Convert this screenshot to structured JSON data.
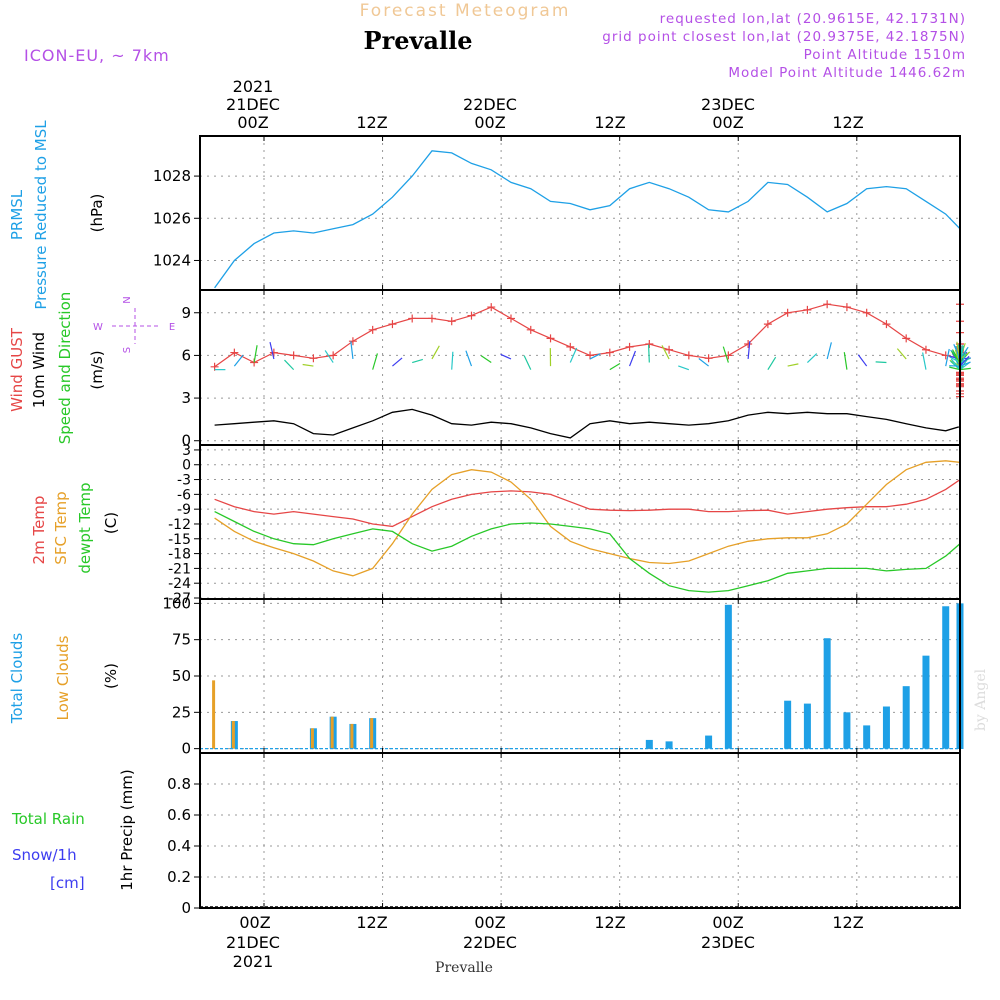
{
  "header": {
    "subtitle": "Forecast Meteogram",
    "title": "Prevalle",
    "model": "ICON-EU, ~ 7km",
    "requested": "requested lon,lat (20.9615E, 42.1731N)",
    "grid_point": "grid point closest lon,lat (20.9375E, 42.1875N)",
    "point_alt": "Point Altitude 1510m",
    "model_alt": "Model Point Altitude 1446.62m"
  },
  "top_axis": {
    "year": "2021",
    "days": [
      "21DEC",
      "22DEC",
      "23DEC"
    ],
    "ticks": [
      "00Z",
      "12Z",
      "00Z",
      "12Z",
      "00Z",
      "12Z"
    ]
  },
  "bottom_axis": {
    "ticks": [
      "00Z",
      "12Z",
      "00Z",
      "12Z",
      "00Z",
      "12Z"
    ],
    "days": [
      "21DEC",
      "22DEC",
      "23DEC"
    ],
    "year": "2021",
    "place": "Prevalle"
  },
  "watermark": "by Angel",
  "colors": {
    "pressure": "#1ea0e6",
    "gust": "#e64646",
    "wind10m": "#000000",
    "temp2m": "#e64646",
    "sfc_temp": "#e6a028",
    "dewpt": "#28c828",
    "total_clouds": "#1ea0e6",
    "low_clouds": "#e6a028",
    "rain": "#28c828",
    "snow": "#3c3cf0",
    "purple": "#b450e6"
  },
  "panels": {
    "pressure": {
      "label1": "PRMSL",
      "label2": "Pressure Reduced to MSL",
      "unit": "(hPa)"
    },
    "wind": {
      "label_gust": "Wind GUST",
      "label_10m": "10m Wind",
      "label_dir": "Speed and Direction",
      "unit": "(m/s)",
      "compass": {
        "n": "N",
        "s": "S",
        "w": "W",
        "e": "E"
      }
    },
    "temp": {
      "label_2m": "2m Temp",
      "label_sfc": "SFC Temp",
      "label_dew": "dewpt Temp",
      "unit": "(C)"
    },
    "clouds": {
      "label_total": "Total Clouds",
      "label_low": "Low Clouds",
      "unit": "(%)"
    },
    "precip": {
      "label_rain": "Total  Rain",
      "label_snow": "Snow/1h",
      "label_cm": "[cm]",
      "axis": "1hr Precip (mm)"
    }
  },
  "chart_data": [
    {
      "type": "line",
      "title": "PRMSL Pressure Reduced to MSL",
      "ylabel": "(hPa)",
      "ylim": [
        1022.6,
        1029.9
      ],
      "yticks": [
        1024,
        1026,
        1028
      ],
      "x_hours": [
        -5,
        -3,
        -1,
        1,
        3,
        5,
        7,
        9,
        11,
        13,
        15,
        17,
        19,
        21,
        23,
        25,
        27,
        29,
        31,
        33,
        35,
        37,
        39,
        41,
        43,
        45,
        47,
        49,
        51,
        53,
        55,
        57,
        59,
        61,
        63,
        65,
        67,
        69,
        71,
        73,
        75,
        77,
        79,
        81,
        83,
        85,
        87,
        89,
        91,
        93,
        95,
        97,
        99,
        101,
        103,
        105,
        107,
        109,
        111,
        113,
        115,
        117,
        119,
        121,
        123,
        125,
        127,
        129,
        131,
        133,
        135,
        137,
        139,
        141,
        143
      ],
      "values": [
        1022.7,
        1024.0,
        1024.8,
        1025.3,
        1025.4,
        1025.3,
        1025.5,
        1025.7,
        1026.2,
        1027.0,
        1028.0,
        1029.2,
        1029.1,
        1028.6,
        1028.3,
        1027.7,
        1027.4,
        1026.8,
        1026.7,
        1026.4,
        1026.6,
        1027.4,
        1027.7,
        1027.4,
        1027.0,
        1026.4,
        1026.3,
        1026.8,
        1027.7,
        1027.6,
        1027.0,
        1026.3,
        1026.7,
        1027.4,
        1027.5,
        1027.4,
        1026.8,
        1026.2,
        1025.5,
        1025.1,
        1024.8,
        1024.9,
        1025.2,
        1025.8,
        1026.2,
        1027.1,
        1027.4,
        1027.2,
        1027.4,
        1027.5,
        1027.9,
        1028.1,
        1028.1,
        1028.2,
        1027.8,
        1027.3,
        1027.1,
        1027.2,
        1027.4,
        1027.3,
        1027.0,
        1026.3,
        1025.2,
        1024.5,
        1023.9,
        1023.8,
        1023.7,
        1023.8,
        1024.3,
        1024.4,
        1024.7,
        1024.6,
        1024.2,
        1023.6,
        1023.2
      ]
    },
    {
      "type": "line",
      "title": "Wind GUST / 10m Wind Speed and Direction",
      "ylabel": "(m/s)",
      "ylim": [
        -0.3,
        10.6
      ],
      "yticks": [
        0,
        3,
        6,
        9
      ],
      "x_hours": [
        -5,
        -3,
        -1,
        1,
        3,
        5,
        7,
        9,
        11,
        13,
        15,
        17,
        19,
        21,
        23,
        25,
        27,
        29,
        31,
        33,
        35,
        37,
        39,
        41,
        43,
        45,
        47,
        49,
        51,
        53,
        55,
        57,
        59,
        61,
        63,
        65,
        67,
        69,
        71,
        73,
        75,
        77,
        79,
        81,
        83,
        85,
        87,
        89,
        91,
        93,
        95,
        97,
        99,
        101,
        103,
        105,
        107,
        109,
        111,
        113,
        115,
        117,
        119,
        121,
        123,
        125,
        127,
        129,
        131,
        133,
        135,
        137,
        139,
        141,
        143
      ],
      "series": [
        {
          "name": "Wind GUST",
          "values": [
            5.2,
            6.2,
            5.5,
            6.2,
            6.0,
            5.8,
            6.0,
            7.0,
            7.8,
            8.2,
            8.6,
            8.6,
            8.4,
            8.8,
            9.4,
            8.6,
            7.8,
            7.2,
            6.6,
            6.0,
            6.2,
            6.6,
            6.8,
            6.4,
            6.0,
            5.8,
            6.0,
            6.8,
            8.2,
            9.0,
            9.2,
            9.6,
            9.4,
            9.0,
            8.2,
            7.2,
            6.4,
            6.0,
            5.8,
            6.0,
            6.2,
            6.3,
            6.2,
            5.6,
            4.8,
            4.0,
            3.5,
            3.1,
            3.3,
            3.8,
            4.2,
            4.3,
            4.4,
            4.6,
            4.7,
            4.8,
            4.8,
            4.6,
            4.2,
            4.0,
            3.9,
            4.4,
            5.2,
            6.5,
            6.8,
            6.5,
            6.2,
            6.2,
            6.6,
            6.4,
            6.0,
            6.8,
            7.6,
            8.4,
            9.6
          ]
        },
        {
          "name": "10m Wind",
          "values": [
            1.1,
            1.2,
            1.3,
            1.4,
            1.2,
            0.5,
            0.4,
            0.9,
            1.4,
            2.0,
            2.2,
            1.8,
            1.2,
            1.1,
            1.3,
            1.2,
            0.9,
            0.5,
            0.2,
            1.2,
            1.4,
            1.2,
            1.3,
            1.2,
            1.1,
            1.2,
            1.4,
            1.8,
            2.0,
            1.9,
            2.0,
            1.9,
            1.9,
            1.7,
            1.5,
            1.2,
            0.9,
            0.7,
            1.0,
            1.1,
            1.0,
            0.7,
            0.3,
            0.8,
            1.0,
            0.9,
            1.0,
            1.1,
            1.1,
            1.2,
            1.3,
            1.5,
            1.5,
            1.4,
            1.5,
            1.4,
            1.6,
            1.5,
            1.3,
            1.0,
            0.7,
            0.5,
            0.7,
            0.8,
            1.2,
            0.9,
            0.8,
            1.9,
            1.8,
            1.7,
            1.9,
            2.1,
            2.1,
            2.4,
            2.3
          ]
        }
      ]
    },
    {
      "type": "line",
      "title": "2m Temp / SFC Temp / dewpt Temp",
      "ylabel": "(C)",
      "ylim": [
        -27.2,
        4
      ],
      "yticks": [
        -27,
        -24,
        -21,
        -18,
        -15,
        -12,
        -9,
        -6,
        -3,
        0,
        3
      ],
      "x_hours": [
        -5,
        -3,
        -1,
        1,
        3,
        5,
        7,
        9,
        11,
        13,
        15,
        17,
        19,
        21,
        23,
        25,
        27,
        29,
        31,
        33,
        35,
        37,
        39,
        41,
        43,
        45,
        47,
        49,
        51,
        53,
        55,
        57,
        59,
        61,
        63,
        65,
        67,
        69,
        71,
        73,
        75,
        77,
        79,
        81,
        83,
        85,
        87,
        89,
        91,
        93,
        95,
        97,
        99,
        101,
        103,
        105,
        107,
        109,
        111,
        113,
        115,
        117,
        119,
        121,
        123,
        125,
        127,
        129,
        131,
        133,
        135,
        137,
        139,
        141,
        143
      ],
      "series": [
        {
          "name": "2m Temp",
          "values": [
            -7,
            -8.5,
            -9.5,
            -10.0,
            -9.5,
            -10.0,
            -10.5,
            -11.0,
            -12.0,
            -12.5,
            -10.5,
            -8.5,
            -7.0,
            -6.0,
            -5.5,
            -5.3,
            -5.5,
            -6.0,
            -7.5,
            -9.0,
            -9.2,
            -9.3,
            -9.2,
            -9.0,
            -9.0,
            -9.5,
            -9.5,
            -9.3,
            -9.2,
            -10.0,
            -9.5,
            -9.0,
            -8.7,
            -8.5,
            -8.5,
            -8.0,
            -7.0,
            -5.0,
            -3.0,
            -2.0,
            -1.8,
            -1.9,
            -2.5,
            -4.5,
            -6.5,
            -7.5,
            -8.0,
            -8.2,
            -8.5,
            -8.8,
            -9.0,
            -8.5,
            -8.3,
            -8.3,
            -8.0,
            -7.8,
            -7.5,
            -7.0,
            -7.5,
            -7.0,
            -6.0,
            -3.5,
            -1.5,
            -0.5,
            -0.2,
            -0.5,
            -1.0,
            -2.5,
            -4.0,
            -4.2,
            -4.2,
            -3.8,
            -3.5,
            -2.8,
            -2.8
          ]
        },
        {
          "name": "SFC Temp",
          "values": [
            -10.8,
            -13.5,
            -15.5,
            -16.8,
            -18.0,
            -19.5,
            -21.5,
            -22.5,
            -21.0,
            -16.0,
            -10.0,
            -5.0,
            -2.0,
            -1.0,
            -1.5,
            -3.5,
            -7.0,
            -12.5,
            -15.5,
            -17.0,
            -18.0,
            -19.0,
            -19.8,
            -20.0,
            -19.5,
            -18.0,
            -16.5,
            -15.5,
            -15.0,
            -14.8,
            -14.8,
            -14.0,
            -12.0,
            -8.0,
            -4.0,
            -1.0,
            0.5,
            0.8,
            0.5,
            -1.0,
            -4.0,
            -8.0,
            -12.0,
            -15.0,
            -17.0,
            -17.8,
            -17.5,
            -16.8,
            -16.0,
            -15.5,
            -15.0,
            -14.5,
            -14.2,
            -14.0,
            -13.8,
            -12.0,
            -7.0,
            -1.0,
            2.0,
            2.5,
            2.0,
            0.0,
            -3.0,
            -7.0,
            -9.5,
            -10.5,
            -10.5,
            -10.0,
            -9.5,
            -9.0,
            -8.5,
            -7.5,
            -7.0,
            -7.0,
            -7.0
          ]
        },
        {
          "name": "dewpt Temp",
          "values": [
            -9.5,
            -11.5,
            -13.5,
            -15.0,
            -16.0,
            -16.2,
            -15.0,
            -14.0,
            -13.0,
            -13.5,
            -16.0,
            -17.5,
            -16.5,
            -14.5,
            -13.0,
            -12.0,
            -11.8,
            -12.0,
            -12.5,
            -13.0,
            -14.0,
            -19.0,
            -22.0,
            -24.5,
            -25.5,
            -25.8,
            -25.5,
            -24.5,
            -23.5,
            -22.0,
            -21.5,
            -21.0,
            -21.0,
            -21.0,
            -21.5,
            -21.2,
            -21.0,
            -18.5,
            -16.0,
            -19.0,
            -18.5,
            -17.0,
            -15.0,
            -13.5,
            -12.5,
            -12.8,
            -13.0,
            -13.0,
            -13.0,
            -13.0,
            -12.8,
            -12.5,
            -12.5,
            -12.5,
            -12.5,
            -12.5,
            -12.8,
            -12.8,
            -12.5,
            -12.0,
            -11.5,
            -9.5,
            -10.5,
            -10.5,
            -10.2,
            -9.8,
            -9.5,
            -7.0,
            -10.0,
            -12.0,
            -12.5,
            -12.5,
            -12.8,
            -12.5,
            -10.0
          ]
        }
      ]
    },
    {
      "type": "bar",
      "title": "Total Clouds / Low Clouds",
      "ylabel": "(%)",
      "ylim": [
        -3,
        103
      ],
      "yticks": [
        0,
        25,
        50,
        75,
        100
      ],
      "x_hours": [
        -5,
        -3,
        -1,
        1,
        3,
        5,
        7,
        9,
        11,
        13,
        15,
        17,
        19,
        21,
        23,
        25,
        27,
        29,
        31,
        33,
        35,
        37,
        39,
        41,
        43,
        45,
        47,
        49,
        51,
        53,
        55,
        57,
        59,
        61,
        63,
        65,
        67,
        69,
        71,
        73,
        75,
        77,
        79,
        81,
        83,
        85,
        87,
        89,
        91,
        93,
        95,
        97,
        99,
        101,
        103,
        105,
        107,
        109,
        111,
        113,
        115,
        117,
        119,
        121,
        123,
        125,
        127,
        129,
        131,
        133,
        135,
        137,
        139,
        141,
        143
      ],
      "series": [
        {
          "name": "Total Clouds",
          "values": [
            0,
            19,
            0,
            0,
            0,
            14,
            22,
            17,
            21,
            0,
            0,
            0,
            0,
            0,
            0,
            0,
            0,
            0,
            0,
            0,
            0,
            0,
            6,
            5,
            0,
            9,
            99,
            0,
            0,
            33,
            31,
            76,
            25,
            16,
            29,
            43,
            64,
            98,
            40,
            7,
            19,
            0,
            2,
            3,
            3,
            16,
            11,
            3,
            2,
            2,
            0,
            0,
            0,
            0,
            0,
            0,
            0,
            0,
            0,
            0,
            0,
            0,
            0,
            0,
            0,
            0,
            0,
            0,
            0,
            0,
            0,
            2,
            76,
            77,
            100
          ]
        },
        {
          "name": "Low Clouds",
          "values": [
            47,
            19,
            0,
            0,
            0,
            14,
            22,
            17,
            21,
            0,
            0,
            0,
            0,
            0,
            0,
            0,
            0,
            0,
            0,
            0,
            0,
            0,
            0,
            0,
            0,
            0,
            0,
            0,
            0,
            0,
            0,
            0,
            0,
            0,
            0,
            0,
            0,
            0,
            0,
            0,
            0,
            0,
            2,
            3,
            3,
            16,
            11,
            3,
            2,
            2,
            0,
            0,
            0,
            0,
            0,
            0,
            0,
            0,
            0,
            0,
            0,
            0,
            0,
            0,
            0,
            0,
            0,
            0,
            0,
            0,
            0,
            0,
            0,
            0,
            0
          ]
        }
      ]
    },
    {
      "type": "bar",
      "title": "Total Rain / Snow/1h",
      "ylabel": "1hr Precip (mm)",
      "ylim": [
        0,
        1
      ],
      "yticks": [
        0,
        0.2,
        0.4,
        0.6,
        0.8
      ],
      "series": [
        {
          "name": "Total Rain",
          "values": []
        },
        {
          "name": "Snow/1h",
          "values": []
        }
      ]
    }
  ]
}
